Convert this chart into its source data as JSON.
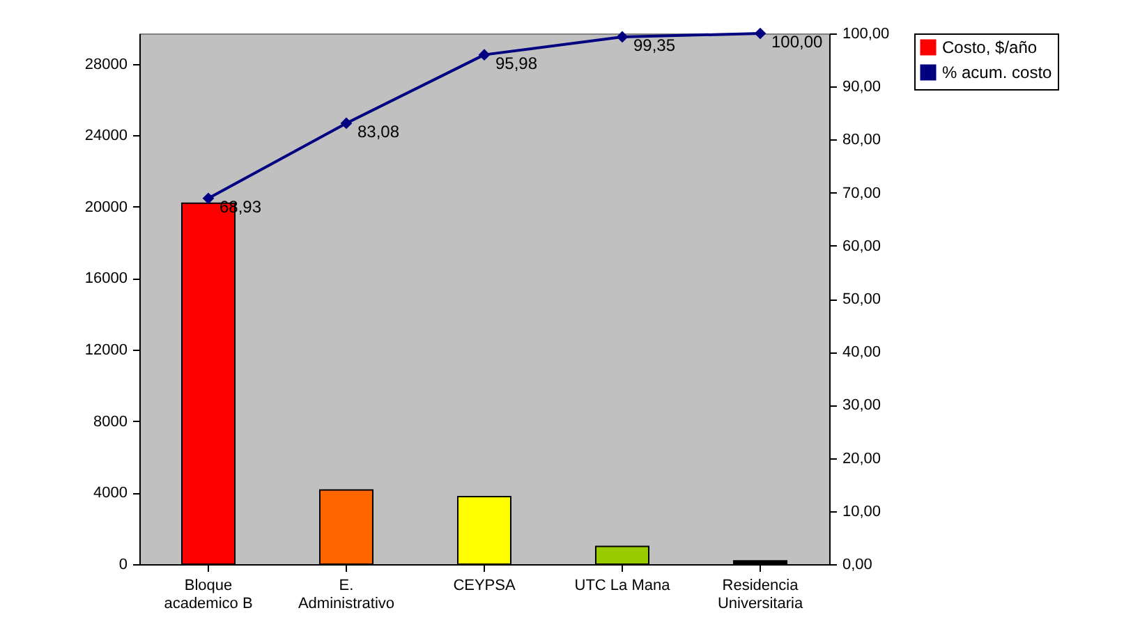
{
  "chart_data": {
    "type": "bar",
    "categories": [
      "Bloque academico B",
      "E. Administrativo",
      "CEYPSA",
      "UTC La Mana",
      "Residencia Universitaria"
    ],
    "series": [
      {
        "name": "Costo, $/año",
        "color": "#ff0000",
        "colors": [
          "#ff0000",
          "#ff6600",
          "#ffff00",
          "#99cc00",
          "#000000"
        ],
        "values": [
          20200,
          4150,
          3780,
          990,
          190
        ]
      },
      {
        "name": "% acum. costo",
        "type": "line",
        "axis": "y2",
        "color": "#000080",
        "marker": "diamond",
        "line_style": "solid",
        "values": [
          68.93,
          83.08,
          95.98,
          99.35,
          100.0
        ],
        "value_labels": [
          "68,93",
          "83,08",
          "95,98",
          "99,35",
          "100,00"
        ]
      }
    ],
    "ylim": [
      0,
      29700
    ],
    "yticks": [
      0,
      4000,
      8000,
      12000,
      16000,
      20000,
      24000,
      28000
    ],
    "y2lim": [
      0,
      100
    ],
    "y2ticks": [
      {
        "value": 0,
        "label": "0,00"
      },
      {
        "value": 10,
        "label": "10,00"
      },
      {
        "value": 20,
        "label": "20,00"
      },
      {
        "value": 30,
        "label": "30,00"
      },
      {
        "value": 40,
        "label": "40,00"
      },
      {
        "value": 50,
        "label": "50,00"
      },
      {
        "value": 60,
        "label": "60,00"
      },
      {
        "value": 70,
        "label": "70,00"
      },
      {
        "value": 80,
        "label": "80,00"
      },
      {
        "value": 90,
        "label": "90,00"
      },
      {
        "value": 100,
        "label": "100,00"
      }
    ],
    "grid": false,
    "legend": "right"
  }
}
